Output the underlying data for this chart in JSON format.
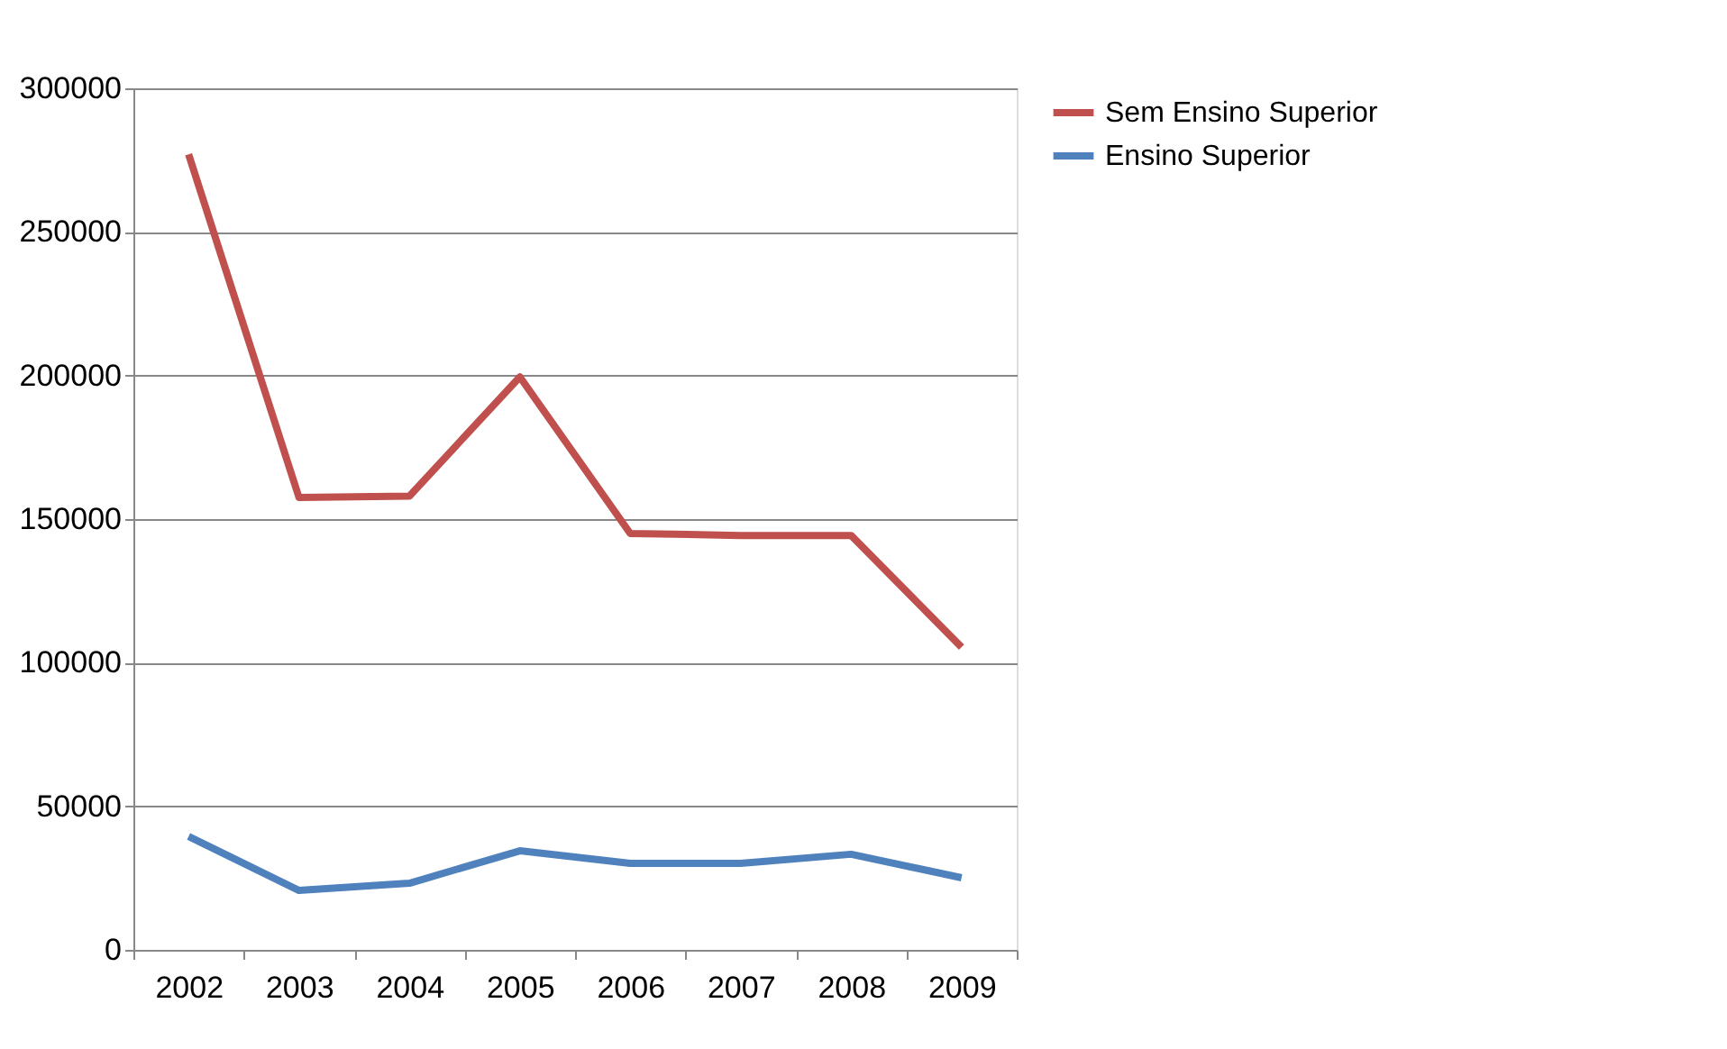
{
  "chart_data": {
    "type": "line",
    "categories": [
      "2002",
      "2003",
      "2004",
      "2005",
      "2006",
      "2007",
      "2008",
      "2009"
    ],
    "series": [
      {
        "name": "Sem Ensino Superior",
        "color": "#c0504d",
        "values": [
          277000,
          157500,
          158000,
          199500,
          145000,
          144300,
          144300,
          105400
        ]
      },
      {
        "name": "Ensino Superior",
        "color": "#4f81bd",
        "values": [
          39500,
          20700,
          23200,
          34500,
          30100,
          30100,
          33300,
          25100
        ]
      }
    ],
    "ylim": [
      0,
      300000
    ],
    "yticks": [
      0,
      50000,
      100000,
      150000,
      200000,
      250000,
      300000
    ],
    "grid": "y",
    "legend": "right",
    "marker": "none",
    "line_style": "solid"
  }
}
